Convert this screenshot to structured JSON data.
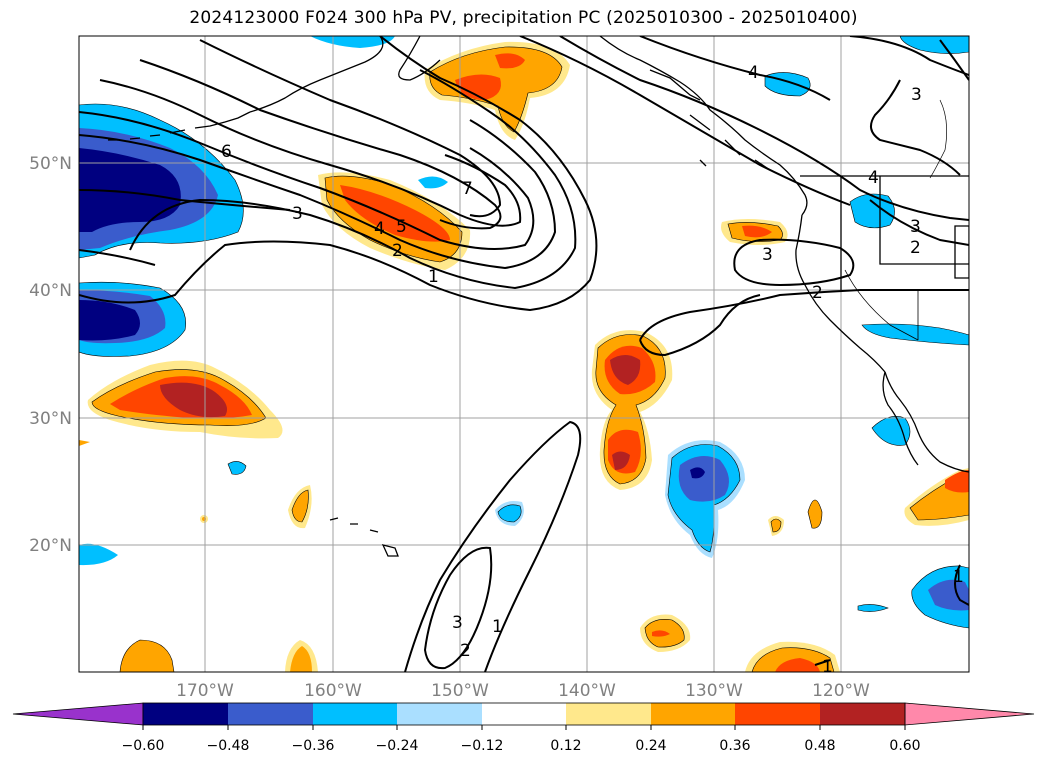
{
  "title": "2024123000 F024 300 hPa PV, precipitation PC (2025010300 - 2025010400)",
  "lat_labels": [
    "50°N",
    "40°N",
    "30°N",
    "20°N"
  ],
  "lon_labels": [
    "170°W",
    "160°W",
    "150°W",
    "140°W",
    "130°W",
    "120°W"
  ],
  "colorbar": {
    "ticks": [
      "−0.60",
      "−0.48",
      "−0.36",
      "−0.24",
      "−0.12",
      "0.12",
      "0.24",
      "0.36",
      "0.48",
      "0.60"
    ],
    "colors": [
      "#9932cc",
      "#000080",
      "#3a5ccc",
      "#00bfff",
      "#aadfff",
      "#ffffff",
      "#ffe88c",
      "#ffa500",
      "#ff4500",
      "#b22222",
      "#ff88aa"
    ]
  },
  "contour_labels": [
    "6",
    "3",
    "7",
    "4",
    "5",
    "2",
    "1",
    "4",
    "3",
    "3",
    "2",
    "3",
    "2",
    "4",
    "3",
    "2",
    "1",
    "1",
    "1"
  ]
}
